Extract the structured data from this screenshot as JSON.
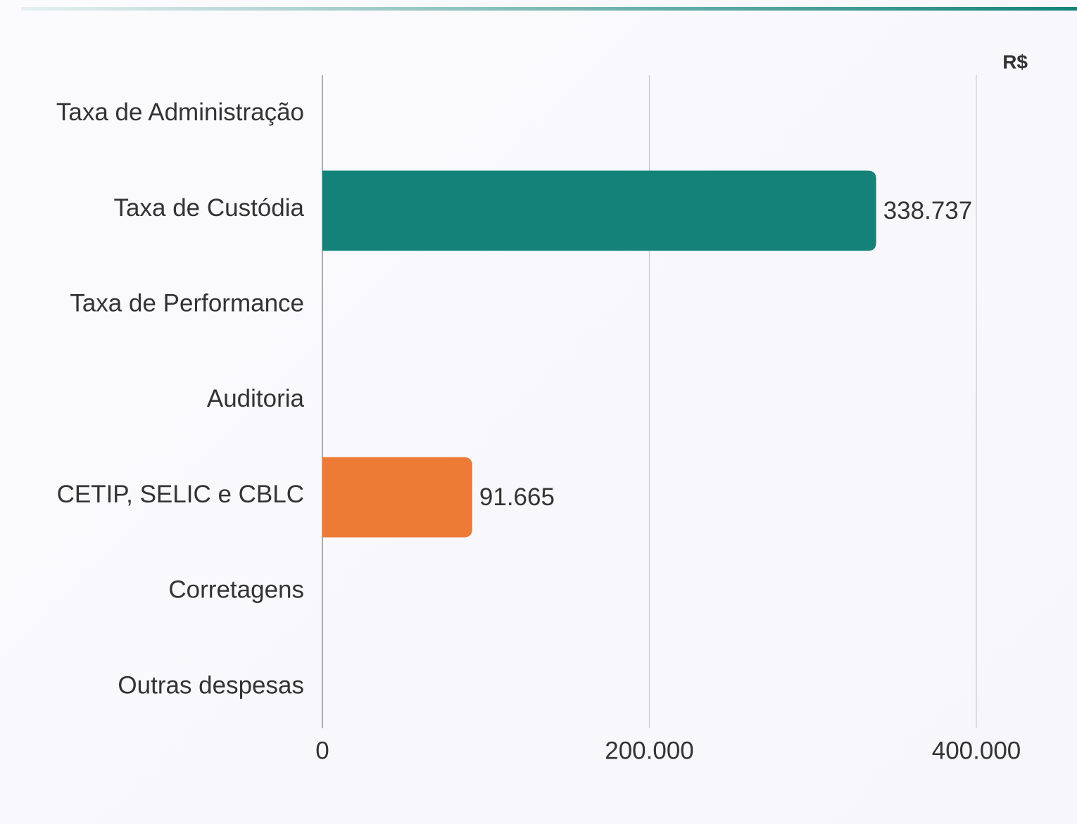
{
  "chart_data": {
    "type": "bar",
    "orientation": "horizontal",
    "unit_label": "R$",
    "categories": [
      "Taxa de Administração",
      "Taxa de Custódia",
      "Taxa de Performance",
      "Auditoria",
      "CETIP, SELIC e CBLC",
      "Corretagens",
      "Outras despesas"
    ],
    "values": [
      null,
      338737,
      null,
      null,
      91665,
      null,
      null
    ],
    "value_labels": [
      null,
      "338.737",
      null,
      null,
      "91.665",
      null,
      null
    ],
    "colors": [
      null,
      "#15827a",
      null,
      null,
      "#ed7b35",
      null,
      null
    ],
    "xlim": [
      0,
      400000
    ],
    "xticks": [
      0,
      {
        "value": 200000,
        "label": "200.000"
      },
      {
        "value": 400000,
        "label": "400.000"
      }
    ],
    "grid": true
  }
}
